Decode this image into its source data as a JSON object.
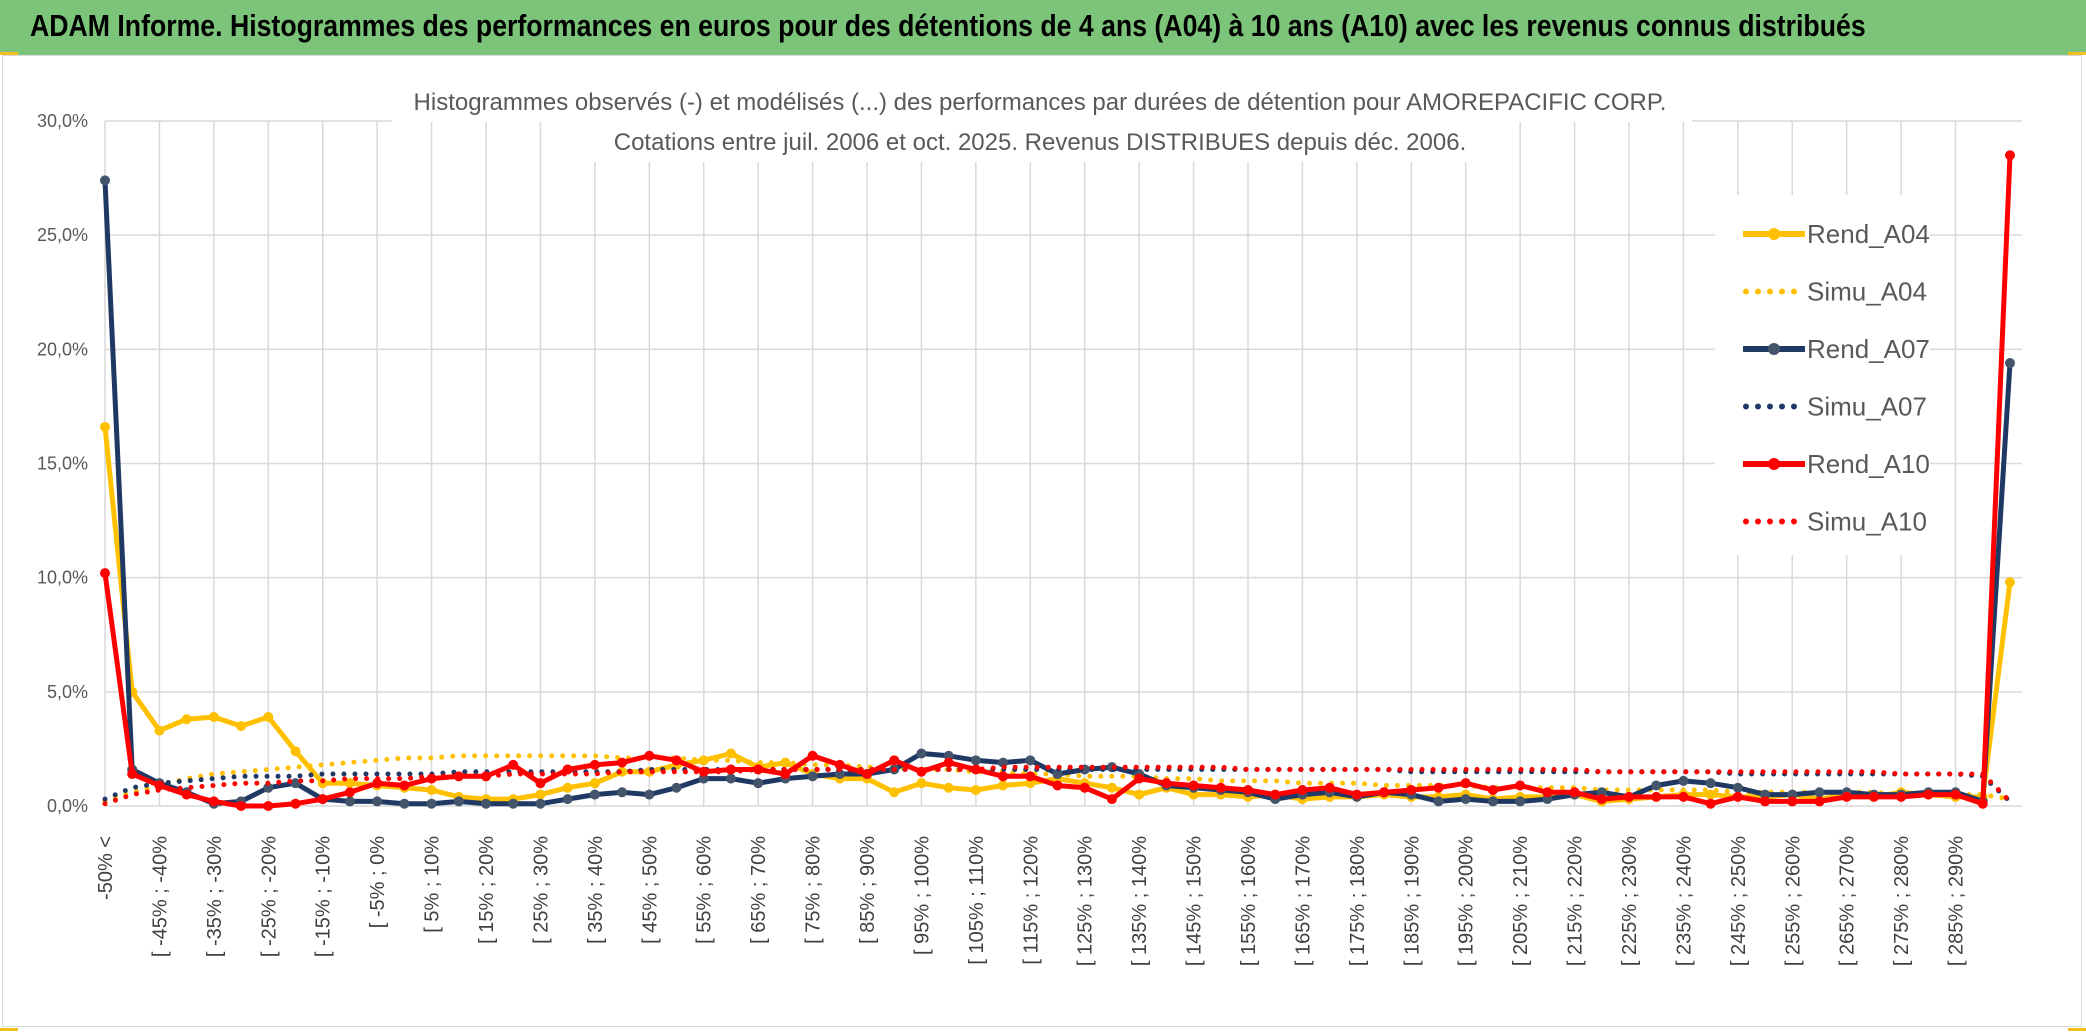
{
  "banner": {
    "title": "ADAM Informe. Histogrammes des performances en euros pour des détentions de 4 ans (A04) à 10 ans (A10) avec les revenus connus distribués"
  },
  "colors": {
    "banner_bg": "#7cc47a",
    "gold": "#ffc000",
    "navy": "#1f3864",
    "red": "#ff0000",
    "grid": "#d9d9d9"
  },
  "chart_data": {
    "type": "line",
    "title": "Histogrammes observés (-) et modélisés (...) des performances par durées de détention pour AMOREPACIFIC CORP.",
    "subtitle": "Cotations entre juil. 2006 et oct. 2025. Revenus DISTRIBUES depuis déc. 2006.",
    "ylim": [
      0,
      30
    ],
    "y_ticks": [
      "0,0%",
      "5,0%",
      "10,0%",
      "15,0%",
      "20,0%",
      "25,0%",
      "30,0%"
    ],
    "grid": true,
    "legend_position": "top-right",
    "x_ticks": [
      "-50% <",
      "[ -45% ; -40%",
      "[ -35% ; -30%",
      "[ -25% ; -20%",
      "[ -15% ; -10%",
      "[ -5% ; 0%",
      "[ 5% ; 10%",
      "[ 15% ; 20%",
      "[ 25% ; 30%",
      "[ 35% ; 40%",
      "[ 45% ; 50%",
      "[ 55% ; 60%",
      "[ 65% ; 70%",
      "[ 75% ; 80%",
      "[ 85% ; 90%",
      "[ 95% ; 100%",
      "[ 105% ; 110%",
      "[ 115% ; 120%",
      "[ 125% ; 130%",
      "[ 135% ; 140%",
      "[ 145% ; 150%",
      "[ 155% ; 160%",
      "[ 165% ; 170%",
      "[ 175% ; 180%",
      "[ 185% ; 190%",
      "[ 195% ; 200%",
      "[ 205% ; 210%",
      "[ 215% ; 220%",
      "[ 225% ; 230%",
      "[ 235% ; 240%",
      "[ 245% ; 250%",
      "[ 255% ; 260%",
      "[ 265% ; 270%",
      "[ 275% ; 280%",
      "[ 285% ; 290%"
    ],
    "n_categories": 71,
    "series": [
      {
        "name": "Rend_A04",
        "style": "solid",
        "color": "#ffc000",
        "values": [
          16.6,
          5.0,
          3.3,
          3.8,
          3.9,
          3.5,
          3.9,
          2.4,
          1.0,
          1.0,
          0.9,
          0.8,
          0.7,
          0.4,
          0.3,
          0.3,
          0.5,
          0.8,
          1.0,
          1.5,
          1.5,
          1.8,
          2.0,
          2.3,
          1.7,
          1.9,
          1.4,
          1.2,
          1.2,
          0.6,
          1.0,
          0.8,
          0.7,
          0.9,
          1.0,
          1.2,
          1.0,
          0.8,
          0.5,
          0.8,
          0.5,
          0.5,
          0.4,
          0.5,
          0.3,
          0.4,
          0.4,
          0.5,
          0.4,
          0.4,
          0.5,
          0.3,
          0.4,
          0.4,
          0.5,
          0.2,
          0.3,
          0.4,
          0.5,
          0.5,
          0.4,
          0.4,
          0.5,
          0.3,
          0.5,
          0.4,
          0.6,
          0.5,
          0.4,
          0.4,
          9.8
        ]
      },
      {
        "name": "Simu_A04",
        "style": "dotted",
        "color": "#ffc000",
        "values": [
          0.2,
          0.6,
          0.9,
          1.2,
          1.4,
          1.5,
          1.6,
          1.7,
          1.8,
          1.9,
          2.0,
          2.1,
          2.1,
          2.2,
          2.2,
          2.2,
          2.2,
          2.2,
          2.2,
          2.1,
          2.1,
          2.1,
          2.0,
          2.0,
          1.9,
          1.9,
          1.8,
          1.8,
          1.7,
          1.7,
          1.6,
          1.6,
          1.5,
          1.5,
          1.4,
          1.4,
          1.3,
          1.3,
          1.3,
          1.2,
          1.2,
          1.1,
          1.1,
          1.1,
          1.0,
          1.0,
          1.0,
          0.9,
          0.9,
          0.9,
          0.9,
          0.8,
          0.8,
          0.8,
          0.8,
          0.7,
          0.7,
          0.7,
          0.7,
          0.7,
          0.6,
          0.6,
          0.6,
          0.6,
          0.6,
          0.6,
          0.5,
          0.5,
          0.5,
          0.5,
          0.3
        ]
      },
      {
        "name": "Rend_A07",
        "style": "solid",
        "color": "#1f3864",
        "values": [
          27.4,
          1.6,
          1.0,
          0.6,
          0.1,
          0.2,
          0.8,
          1.0,
          0.3,
          0.2,
          0.2,
          0.1,
          0.1,
          0.2,
          0.1,
          0.1,
          0.1,
          0.3,
          0.5,
          0.6,
          0.5,
          0.8,
          1.2,
          1.2,
          1.0,
          1.2,
          1.3,
          1.4,
          1.4,
          1.6,
          2.3,
          2.2,
          2.0,
          1.9,
          2.0,
          1.4,
          1.6,
          1.7,
          1.4,
          0.9,
          0.8,
          0.7,
          0.6,
          0.3,
          0.5,
          0.6,
          0.4,
          0.6,
          0.5,
          0.2,
          0.3,
          0.2,
          0.2,
          0.3,
          0.5,
          0.6,
          0.4,
          0.9,
          1.1,
          1.0,
          0.8,
          0.5,
          0.5,
          0.6,
          0.6,
          0.5,
          0.5,
          0.6,
          0.6,
          0.2,
          19.4
        ]
      },
      {
        "name": "Simu_A07",
        "style": "dotted",
        "color": "#1f3864",
        "values": [
          0.3,
          0.8,
          1.0,
          1.1,
          1.2,
          1.3,
          1.3,
          1.3,
          1.4,
          1.4,
          1.4,
          1.4,
          1.4,
          1.5,
          1.5,
          1.5,
          1.5,
          1.5,
          1.5,
          1.5,
          1.6,
          1.6,
          1.6,
          1.6,
          1.6,
          1.6,
          1.6,
          1.6,
          1.6,
          1.6,
          1.6,
          1.6,
          1.6,
          1.6,
          1.6,
          1.6,
          1.6,
          1.6,
          1.6,
          1.6,
          1.6,
          1.6,
          1.6,
          1.6,
          1.6,
          1.6,
          1.6,
          1.6,
          1.5,
          1.5,
          1.5,
          1.5,
          1.5,
          1.5,
          1.5,
          1.5,
          1.5,
          1.5,
          1.5,
          1.5,
          1.4,
          1.4,
          1.4,
          1.4,
          1.4,
          1.4,
          1.4,
          1.4,
          1.4,
          1.3,
          0.2
        ]
      },
      {
        "name": "Rend_A10",
        "style": "solid",
        "color": "#ff0000",
        "values": [
          10.2,
          1.4,
          0.9,
          0.5,
          0.2,
          0.0,
          0.0,
          0.1,
          0.3,
          0.6,
          1.0,
          0.9,
          1.2,
          1.3,
          1.3,
          1.8,
          1.0,
          1.6,
          1.8,
          1.9,
          2.2,
          2.0,
          1.5,
          1.6,
          1.6,
          1.4,
          2.2,
          1.8,
          1.4,
          2.0,
          1.5,
          1.9,
          1.6,
          1.3,
          1.3,
          0.9,
          0.8,
          0.3,
          1.2,
          1.0,
          0.9,
          0.8,
          0.7,
          0.5,
          0.7,
          0.8,
          0.5,
          0.6,
          0.7,
          0.8,
          1.0,
          0.7,
          0.9,
          0.6,
          0.6,
          0.3,
          0.4,
          0.4,
          0.4,
          0.1,
          0.4,
          0.2,
          0.2,
          0.2,
          0.4,
          0.4,
          0.4,
          0.5,
          0.5,
          0.1,
          28.5
        ]
      },
      {
        "name": "Simu_A10",
        "style": "dotted",
        "color": "#ff0000",
        "values": [
          0.1,
          0.5,
          0.7,
          0.8,
          0.9,
          1.0,
          1.0,
          1.1,
          1.1,
          1.2,
          1.2,
          1.2,
          1.3,
          1.3,
          1.3,
          1.4,
          1.4,
          1.4,
          1.4,
          1.5,
          1.5,
          1.5,
          1.5,
          1.5,
          1.6,
          1.6,
          1.6,
          1.6,
          1.6,
          1.6,
          1.6,
          1.6,
          1.6,
          1.7,
          1.7,
          1.7,
          1.7,
          1.7,
          1.7,
          1.7,
          1.7,
          1.7,
          1.6,
          1.6,
          1.6,
          1.6,
          1.6,
          1.6,
          1.6,
          1.6,
          1.6,
          1.6,
          1.6,
          1.6,
          1.6,
          1.5,
          1.5,
          1.5,
          1.5,
          1.5,
          1.5,
          1.5,
          1.5,
          1.5,
          1.5,
          1.5,
          1.4,
          1.4,
          1.4,
          1.4,
          0.2
        ]
      }
    ]
  }
}
